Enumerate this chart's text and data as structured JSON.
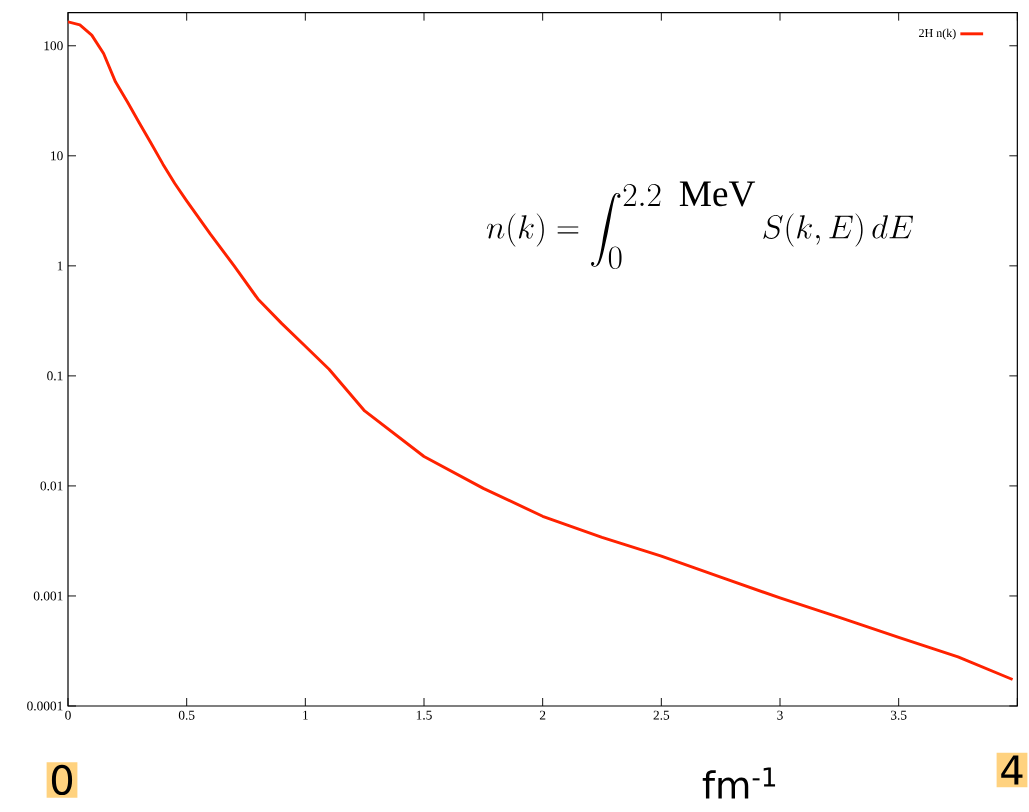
{
  "chart_data": {
    "type": "line",
    "xlabel": "fm$^{-1}$",
    "x": [
      0,
      0.05,
      0.1,
      0.15,
      0.2,
      0.25,
      0.3,
      0.35,
      0.4,
      0.45,
      0.5,
      0.6,
      0.7,
      0.8,
      0.9,
      1,
      1.1,
      1.25,
      1.5,
      1.75,
      2,
      2.25,
      2.5,
      2.75,
      3,
      3.25,
      3.5,
      3.75,
      3.98
    ],
    "series": [
      {
        "name": "2H n(k)",
        "color": "#ff2200",
        "values": [
          165,
          155,
          125,
          85,
          47,
          31,
          20,
          13,
          8.4,
          5.6,
          3.9,
          1.94,
          1.0,
          0.5,
          0.3,
          0.186,
          0.115,
          0.048,
          0.0185,
          0.0095,
          0.0053,
          0.0034,
          0.0023,
          0.00148,
          0.00096,
          0.00064,
          0.00042,
          0.00028,
          0.000174
        ]
      }
    ],
    "xlim": [
      0,
      4
    ],
    "ylim": [
      0.0001,
      200
    ],
    "log": "y",
    "xticks": [
      0,
      0.5,
      1,
      1.5,
      2,
      2.5,
      3,
      3.5,
      {
        "value": 4,
        "label": null
      }
    ],
    "yticks": [
      0.0001,
      0.001,
      0.01,
      0.1,
      1,
      10,
      100
    ],
    "legend": "top right",
    "annotations": [
      "n(k) = \\int_0^{2.2\\ \\mathrm{MeV}} S(k, E)\\,dE",
      "0",
      "4"
    ]
  }
}
